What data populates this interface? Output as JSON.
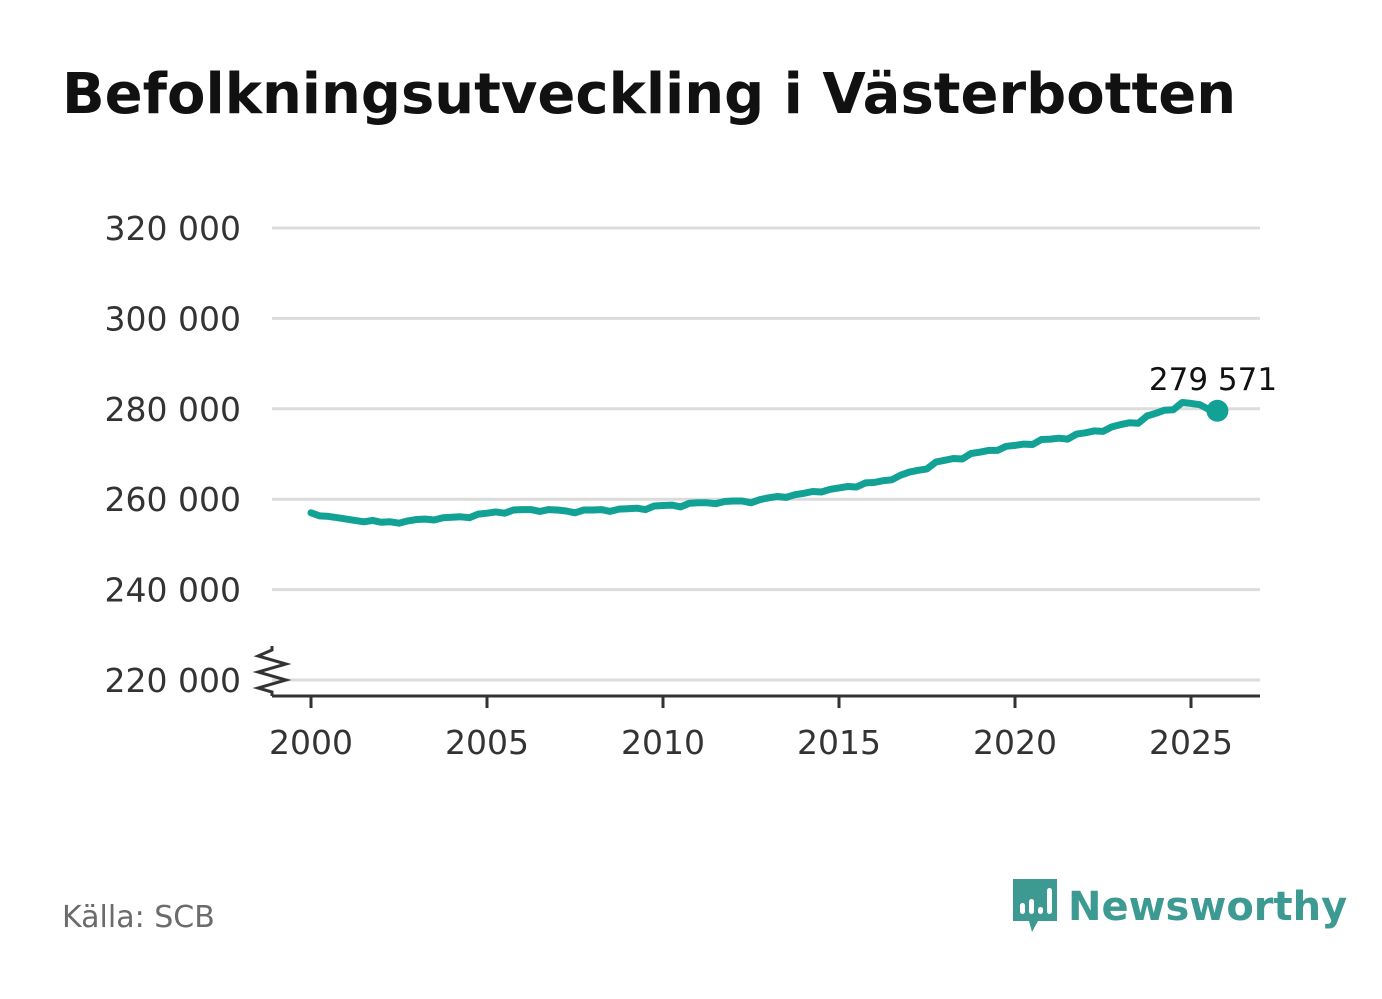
{
  "title": "Befolkningsutveckling i Västerbotten",
  "source": "Källa: SCB",
  "brand": {
    "name": "Newsworthy",
    "icon": "bar-chart-speech-bubble-icon",
    "color": "#3d9a92"
  },
  "chart_data": {
    "type": "line",
    "title": "Befolkningsutveckling i Västerbotten",
    "xlabel": "",
    "ylabel": "",
    "xlim": [
      1998.6,
      2027.0
    ],
    "ylim": [
      216000,
      322000
    ],
    "x_ticks": [
      2000,
      2005,
      2010,
      2015,
      2020,
      2025
    ],
    "y_ticks": [
      220000,
      240000,
      260000,
      280000,
      300000,
      320000
    ],
    "y_tick_labels": [
      "220 000",
      "240 000",
      "260 000",
      "280 000",
      "300 000",
      "320 000"
    ],
    "y_axis_break": true,
    "grid": "horizontal",
    "line_color": "#12a195",
    "last_value_label": "279 571",
    "series": [
      {
        "points": [
          [
            2000.0,
            257000
          ],
          [
            2000.25,
            256300
          ],
          [
            2000.5,
            256200
          ],
          [
            2000.75,
            255900
          ],
          [
            2001.0,
            255600
          ],
          [
            2001.25,
            255300
          ],
          [
            2001.5,
            255000
          ],
          [
            2001.75,
            255300
          ],
          [
            2002.0,
            254900
          ],
          [
            2002.25,
            255000
          ],
          [
            2002.5,
            254700
          ],
          [
            2002.75,
            255200
          ],
          [
            2003.0,
            255500
          ],
          [
            2003.25,
            255600
          ],
          [
            2003.5,
            255400
          ],
          [
            2003.75,
            255900
          ],
          [
            2004.0,
            256000
          ],
          [
            2004.25,
            256100
          ],
          [
            2004.5,
            255900
          ],
          [
            2004.75,
            256700
          ],
          [
            2005.0,
            256900
          ],
          [
            2005.25,
            257200
          ],
          [
            2005.5,
            256900
          ],
          [
            2005.75,
            257600
          ],
          [
            2006.0,
            257700
          ],
          [
            2006.25,
            257700
          ],
          [
            2006.5,
            257300
          ],
          [
            2006.75,
            257700
          ],
          [
            2007.0,
            257600
          ],
          [
            2007.25,
            257400
          ],
          [
            2007.5,
            257000
          ],
          [
            2007.75,
            257600
          ],
          [
            2008.0,
            257600
          ],
          [
            2008.25,
            257700
          ],
          [
            2008.5,
            257300
          ],
          [
            2008.75,
            257800
          ],
          [
            2009.0,
            257900
          ],
          [
            2009.25,
            258000
          ],
          [
            2009.5,
            257700
          ],
          [
            2009.75,
            258500
          ],
          [
            2010.0,
            258600
          ],
          [
            2010.25,
            258700
          ],
          [
            2010.5,
            258300
          ],
          [
            2010.75,
            259100
          ],
          [
            2011.0,
            259200
          ],
          [
            2011.25,
            259200
          ],
          [
            2011.5,
            259000
          ],
          [
            2011.75,
            259500
          ],
          [
            2012.0,
            259600
          ],
          [
            2012.25,
            259600
          ],
          [
            2012.5,
            259200
          ],
          [
            2012.75,
            259900
          ],
          [
            2013.0,
            260300
          ],
          [
            2013.25,
            260600
          ],
          [
            2013.5,
            260400
          ],
          [
            2013.75,
            261000
          ],
          [
            2014.0,
            261300
          ],
          [
            2014.25,
            261700
          ],
          [
            2014.5,
            261600
          ],
          [
            2014.75,
            262200
          ],
          [
            2015.0,
            262500
          ],
          [
            2015.25,
            262800
          ],
          [
            2015.5,
            262700
          ],
          [
            2015.75,
            263600
          ],
          [
            2016.0,
            263700
          ],
          [
            2016.25,
            264100
          ],
          [
            2016.5,
            264300
          ],
          [
            2016.75,
            265300
          ],
          [
            2017.0,
            266000
          ],
          [
            2017.25,
            266400
          ],
          [
            2017.5,
            266700
          ],
          [
            2017.75,
            268200
          ],
          [
            2018.0,
            268600
          ],
          [
            2018.25,
            269000
          ],
          [
            2018.5,
            268900
          ],
          [
            2018.75,
            270100
          ],
          [
            2019.0,
            270400
          ],
          [
            2019.25,
            270800
          ],
          [
            2019.5,
            270800
          ],
          [
            2019.75,
            271700
          ],
          [
            2020.0,
            271900
          ],
          [
            2020.25,
            272200
          ],
          [
            2020.5,
            272100
          ],
          [
            2020.75,
            273200
          ],
          [
            2021.0,
            273300
          ],
          [
            2021.25,
            273500
          ],
          [
            2021.5,
            273300
          ],
          [
            2021.75,
            274400
          ],
          [
            2022.0,
            274700
          ],
          [
            2022.25,
            275100
          ],
          [
            2022.5,
            275000
          ],
          [
            2022.75,
            276000
          ],
          [
            2023.0,
            276500
          ],
          [
            2023.25,
            276900
          ],
          [
            2023.5,
            276800
          ],
          [
            2023.75,
            278400
          ],
          [
            2024.0,
            279000
          ],
          [
            2024.25,
            279700
          ],
          [
            2024.5,
            279800
          ],
          [
            2024.75,
            281400
          ],
          [
            2025.0,
            281200
          ],
          [
            2025.25,
            280900
          ],
          [
            2025.5,
            279900
          ],
          [
            2025.75,
            279571
          ]
        ]
      }
    ]
  }
}
